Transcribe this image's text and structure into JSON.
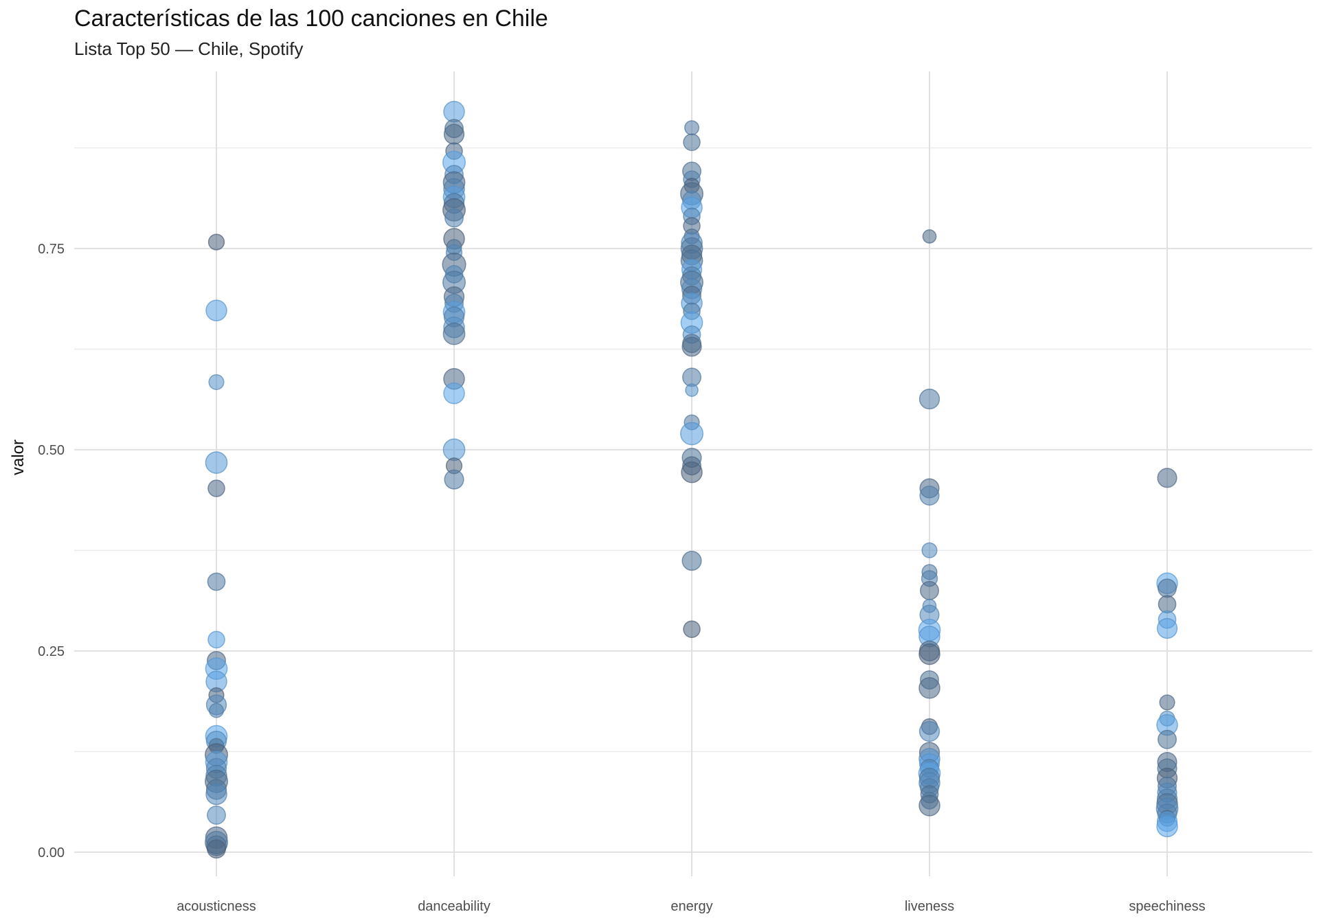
{
  "title": "Características de las 100 canciones en Chile",
  "subtitle": "Lista Top 50 — Chile, Spotify",
  "chart_data": {
    "type": "scatter",
    "title": "Características de las 100 canciones en Chile",
    "subtitle": "Lista Top 50 — Chile, Spotify",
    "xlabel": "",
    "ylabel": "valor",
    "ylim": [
      -0.03,
      0.97
    ],
    "yticks": [
      0,
      0.25,
      0.5,
      0.75
    ],
    "ytick_labels": [
      "0.00",
      "0.25",
      "0.50",
      "0.75"
    ],
    "categories": [
      "acousticness",
      "danceability",
      "energy",
      "liveness",
      "speechiness"
    ],
    "grid": true,
    "legend": "none",
    "colors": {
      "dark": "#4a5a6e",
      "light": "#5aa9f0",
      "mid": "#3f7fc4"
    },
    "points": [
      {
        "cat": "acousticness",
        "y": 0.758,
        "s": 0.45,
        "t": 0.1
      },
      {
        "cat": "acousticness",
        "y": 0.673,
        "s": 0.75,
        "t": 0.9
      },
      {
        "cat": "acousticness",
        "y": 0.584,
        "s": 0.4,
        "t": 0.7
      },
      {
        "cat": "acousticness",
        "y": 0.484,
        "s": 0.8,
        "t": 0.8
      },
      {
        "cat": "acousticness",
        "y": 0.452,
        "s": 0.5,
        "t": 0.2
      },
      {
        "cat": "acousticness",
        "y": 0.336,
        "s": 0.55,
        "t": 0.4
      },
      {
        "cat": "acousticness",
        "y": 0.264,
        "s": 0.5,
        "t": 0.9
      },
      {
        "cat": "acousticness",
        "y": 0.238,
        "s": 0.6,
        "t": 0.2
      },
      {
        "cat": "acousticness",
        "y": 0.228,
        "s": 0.8,
        "t": 0.95
      },
      {
        "cat": "acousticness",
        "y": 0.212,
        "s": 0.75,
        "t": 0.85
      },
      {
        "cat": "acousticness",
        "y": 0.195,
        "s": 0.4,
        "t": 0.1
      },
      {
        "cat": "acousticness",
        "y": 0.183,
        "s": 0.7,
        "t": 0.6
      },
      {
        "cat": "acousticness",
        "y": 0.176,
        "s": 0.35,
        "t": 0.5
      },
      {
        "cat": "acousticness",
        "y": 0.144,
        "s": 0.8,
        "t": 0.95
      },
      {
        "cat": "acousticness",
        "y": 0.138,
        "s": 0.7,
        "t": 0.7
      },
      {
        "cat": "acousticness",
        "y": 0.132,
        "s": 0.4,
        "t": 0.3
      },
      {
        "cat": "acousticness",
        "y": 0.121,
        "s": 0.85,
        "t": 0.1
      },
      {
        "cat": "acousticness",
        "y": 0.112,
        "s": 0.8,
        "t": 0.85
      },
      {
        "cat": "acousticness",
        "y": 0.104,
        "s": 0.7,
        "t": 0.6
      },
      {
        "cat": "acousticness",
        "y": 0.095,
        "s": 0.75,
        "t": 0.5
      },
      {
        "cat": "acousticness",
        "y": 0.088,
        "s": 0.85,
        "t": 0.2
      },
      {
        "cat": "acousticness",
        "y": 0.078,
        "s": 0.7,
        "t": 0.3
      },
      {
        "cat": "acousticness",
        "y": 0.072,
        "s": 0.75,
        "t": 0.6
      },
      {
        "cat": "acousticness",
        "y": 0.046,
        "s": 0.6,
        "t": 0.6
      },
      {
        "cat": "acousticness",
        "y": 0.018,
        "s": 0.8,
        "t": 0.2
      },
      {
        "cat": "acousticness",
        "y": 0.012,
        "s": 0.85,
        "t": 0.4
      },
      {
        "cat": "acousticness",
        "y": 0.008,
        "s": 0.7,
        "t": 0.3
      },
      {
        "cat": "acousticness",
        "y": 0.004,
        "s": 0.6,
        "t": 0.1
      },
      {
        "cat": "danceability",
        "y": 0.92,
        "s": 0.75,
        "t": 0.85
      },
      {
        "cat": "danceability",
        "y": 0.899,
        "s": 0.6,
        "t": 0.3
      },
      {
        "cat": "danceability",
        "y": 0.892,
        "s": 0.7,
        "t": 0.2
      },
      {
        "cat": "danceability",
        "y": 0.871,
        "s": 0.5,
        "t": 0.2
      },
      {
        "cat": "danceability",
        "y": 0.857,
        "s": 0.85,
        "t": 0.95
      },
      {
        "cat": "danceability",
        "y": 0.842,
        "s": 0.6,
        "t": 0.6
      },
      {
        "cat": "danceability",
        "y": 0.832,
        "s": 0.8,
        "t": 0.2
      },
      {
        "cat": "danceability",
        "y": 0.824,
        "s": 0.75,
        "t": 0.5
      },
      {
        "cat": "danceability",
        "y": 0.814,
        "s": 0.8,
        "t": 0.9
      },
      {
        "cat": "danceability",
        "y": 0.806,
        "s": 0.7,
        "t": 0.4
      },
      {
        "cat": "danceability",
        "y": 0.798,
        "s": 0.85,
        "t": 0.1
      },
      {
        "cat": "danceability",
        "y": 0.788,
        "s": 0.6,
        "t": 0.5
      },
      {
        "cat": "danceability",
        "y": 0.762,
        "s": 0.75,
        "t": 0.1
      },
      {
        "cat": "danceability",
        "y": 0.752,
        "s": 0.4,
        "t": 0.3
      },
      {
        "cat": "danceability",
        "y": 0.745,
        "s": 0.45,
        "t": 0.6
      },
      {
        "cat": "danceability",
        "y": 0.73,
        "s": 0.9,
        "t": 0.2
      },
      {
        "cat": "danceability",
        "y": 0.718,
        "s": 0.55,
        "t": 0.6
      },
      {
        "cat": "danceability",
        "y": 0.708,
        "s": 0.85,
        "t": 0.4
      },
      {
        "cat": "danceability",
        "y": 0.69,
        "s": 0.7,
        "t": 0.2
      },
      {
        "cat": "danceability",
        "y": 0.682,
        "s": 0.6,
        "t": 0.5
      },
      {
        "cat": "danceability",
        "y": 0.671,
        "s": 0.8,
        "t": 0.9
      },
      {
        "cat": "danceability",
        "y": 0.665,
        "s": 0.7,
        "t": 0.5
      },
      {
        "cat": "danceability",
        "y": 0.652,
        "s": 0.75,
        "t": 0.7
      },
      {
        "cat": "danceability",
        "y": 0.644,
        "s": 0.8,
        "t": 0.3
      },
      {
        "cat": "danceability",
        "y": 0.588,
        "s": 0.75,
        "t": 0.2
      },
      {
        "cat": "danceability",
        "y": 0.57,
        "s": 0.75,
        "t": 0.95
      },
      {
        "cat": "danceability",
        "y": 0.5,
        "s": 0.8,
        "t": 0.8
      },
      {
        "cat": "danceability",
        "y": 0.48,
        "s": 0.45,
        "t": 0.1
      },
      {
        "cat": "danceability",
        "y": 0.463,
        "s": 0.65,
        "t": 0.4
      },
      {
        "cat": "energy",
        "y": 0.9,
        "s": 0.35,
        "t": 0.4
      },
      {
        "cat": "energy",
        "y": 0.882,
        "s": 0.5,
        "t": 0.3
      },
      {
        "cat": "energy",
        "y": 0.846,
        "s": 0.6,
        "t": 0.3
      },
      {
        "cat": "energy",
        "y": 0.836,
        "s": 0.5,
        "t": 0.5
      },
      {
        "cat": "energy",
        "y": 0.828,
        "s": 0.4,
        "t": 0.1
      },
      {
        "cat": "energy",
        "y": 0.818,
        "s": 0.85,
        "t": 0.2
      },
      {
        "cat": "energy",
        "y": 0.81,
        "s": 0.6,
        "t": 0.6
      },
      {
        "cat": "energy",
        "y": 0.801,
        "s": 0.75,
        "t": 0.95
      },
      {
        "cat": "energy",
        "y": 0.79,
        "s": 0.5,
        "t": 0.5
      },
      {
        "cat": "energy",
        "y": 0.778,
        "s": 0.5,
        "t": 0.2
      },
      {
        "cat": "energy",
        "y": 0.765,
        "s": 0.4,
        "t": 0.3
      },
      {
        "cat": "energy",
        "y": 0.757,
        "s": 0.75,
        "t": 0.6
      },
      {
        "cat": "energy",
        "y": 0.75,
        "s": 0.8,
        "t": 0.4
      },
      {
        "cat": "energy",
        "y": 0.742,
        "s": 0.7,
        "t": 0.2
      },
      {
        "cat": "energy",
        "y": 0.735,
        "s": 0.8,
        "t": 0.3
      },
      {
        "cat": "energy",
        "y": 0.724,
        "s": 0.7,
        "t": 0.9
      },
      {
        "cat": "energy",
        "y": 0.716,
        "s": 0.6,
        "t": 0.5
      },
      {
        "cat": "energy",
        "y": 0.708,
        "s": 0.85,
        "t": 0.3
      },
      {
        "cat": "energy",
        "y": 0.7,
        "s": 0.7,
        "t": 0.6
      },
      {
        "cat": "energy",
        "y": 0.692,
        "s": 0.6,
        "t": 0.2
      },
      {
        "cat": "energy",
        "y": 0.682,
        "s": 0.75,
        "t": 0.85
      },
      {
        "cat": "energy",
        "y": 0.672,
        "s": 0.5,
        "t": 0.4
      },
      {
        "cat": "energy",
        "y": 0.658,
        "s": 0.8,
        "t": 0.95
      },
      {
        "cat": "energy",
        "y": 0.643,
        "s": 0.55,
        "t": 0.7
      },
      {
        "cat": "energy",
        "y": 0.632,
        "s": 0.6,
        "t": 0.3
      },
      {
        "cat": "energy",
        "y": 0.628,
        "s": 0.65,
        "t": 0.2
      },
      {
        "cat": "energy",
        "y": 0.59,
        "s": 0.6,
        "t": 0.4
      },
      {
        "cat": "energy",
        "y": 0.574,
        "s": 0.25,
        "t": 0.7
      },
      {
        "cat": "energy",
        "y": 0.534,
        "s": 0.4,
        "t": 0.4
      },
      {
        "cat": "energy",
        "y": 0.52,
        "s": 0.85,
        "t": 0.85
      },
      {
        "cat": "energy",
        "y": 0.49,
        "s": 0.65,
        "t": 0.3
      },
      {
        "cat": "energy",
        "y": 0.48,
        "s": 0.6,
        "t": 0.2
      },
      {
        "cat": "energy",
        "y": 0.472,
        "s": 0.75,
        "t": 0.1
      },
      {
        "cat": "energy",
        "y": 0.362,
        "s": 0.65,
        "t": 0.3
      },
      {
        "cat": "energy",
        "y": 0.277,
        "s": 0.5,
        "t": 0.1
      },
      {
        "cat": "liveness",
        "y": 0.765,
        "s": 0.3,
        "t": 0.2
      },
      {
        "cat": "liveness",
        "y": 0.563,
        "s": 0.7,
        "t": 0.4
      },
      {
        "cat": "liveness",
        "y": 0.452,
        "s": 0.65,
        "t": 0.2
      },
      {
        "cat": "liveness",
        "y": 0.443,
        "s": 0.65,
        "t": 0.5
      },
      {
        "cat": "liveness",
        "y": 0.375,
        "s": 0.4,
        "t": 0.6
      },
      {
        "cat": "liveness",
        "y": 0.348,
        "s": 0.4,
        "t": 0.4
      },
      {
        "cat": "liveness",
        "y": 0.34,
        "s": 0.45,
        "t": 0.5
      },
      {
        "cat": "liveness",
        "y": 0.325,
        "s": 0.6,
        "t": 0.2
      },
      {
        "cat": "liveness",
        "y": 0.306,
        "s": 0.3,
        "t": 0.6
      },
      {
        "cat": "liveness",
        "y": 0.295,
        "s": 0.65,
        "t": 0.6
      },
      {
        "cat": "liveness",
        "y": 0.276,
        "s": 0.8,
        "t": 0.95
      },
      {
        "cat": "liveness",
        "y": 0.268,
        "s": 0.75,
        "t": 0.85
      },
      {
        "cat": "liveness",
        "y": 0.25,
        "s": 0.7,
        "t": 0.2
      },
      {
        "cat": "liveness",
        "y": 0.246,
        "s": 0.75,
        "t": 0.1
      },
      {
        "cat": "liveness",
        "y": 0.214,
        "s": 0.6,
        "t": 0.3
      },
      {
        "cat": "liveness",
        "y": 0.204,
        "s": 0.75,
        "t": 0.2
      },
      {
        "cat": "liveness",
        "y": 0.156,
        "s": 0.45,
        "t": 0.1
      },
      {
        "cat": "liveness",
        "y": 0.15,
        "s": 0.7,
        "t": 0.6
      },
      {
        "cat": "liveness",
        "y": 0.124,
        "s": 0.7,
        "t": 0.2
      },
      {
        "cat": "liveness",
        "y": 0.116,
        "s": 0.75,
        "t": 0.7
      },
      {
        "cat": "liveness",
        "y": 0.11,
        "s": 0.7,
        "t": 0.9
      },
      {
        "cat": "liveness",
        "y": 0.104,
        "s": 0.6,
        "t": 0.5
      },
      {
        "cat": "liveness",
        "y": 0.098,
        "s": 0.8,
        "t": 0.95
      },
      {
        "cat": "liveness",
        "y": 0.092,
        "s": 0.7,
        "t": 0.4
      },
      {
        "cat": "liveness",
        "y": 0.086,
        "s": 0.75,
        "t": 0.6
      },
      {
        "cat": "liveness",
        "y": 0.08,
        "s": 0.6,
        "t": 0.5
      },
      {
        "cat": "liveness",
        "y": 0.072,
        "s": 0.55,
        "t": 0.3
      },
      {
        "cat": "liveness",
        "y": 0.064,
        "s": 0.5,
        "t": 0.4
      },
      {
        "cat": "liveness",
        "y": 0.058,
        "s": 0.75,
        "t": 0.2
      },
      {
        "cat": "speechiness",
        "y": 0.465,
        "s": 0.65,
        "t": 0.2
      },
      {
        "cat": "speechiness",
        "y": 0.334,
        "s": 0.75,
        "t": 0.95
      },
      {
        "cat": "speechiness",
        "y": 0.328,
        "s": 0.6,
        "t": 0.3
      },
      {
        "cat": "speechiness",
        "y": 0.308,
        "s": 0.55,
        "t": 0.2
      },
      {
        "cat": "speechiness",
        "y": 0.289,
        "s": 0.55,
        "t": 0.85
      },
      {
        "cat": "speechiness",
        "y": 0.278,
        "s": 0.7,
        "t": 0.9
      },
      {
        "cat": "speechiness",
        "y": 0.186,
        "s": 0.4,
        "t": 0.2
      },
      {
        "cat": "speechiness",
        "y": 0.166,
        "s": 0.4,
        "t": 0.7
      },
      {
        "cat": "speechiness",
        "y": 0.158,
        "s": 0.75,
        "t": 0.9
      },
      {
        "cat": "speechiness",
        "y": 0.14,
        "s": 0.6,
        "t": 0.3
      },
      {
        "cat": "speechiness",
        "y": 0.112,
        "s": 0.65,
        "t": 0.2
      },
      {
        "cat": "speechiness",
        "y": 0.104,
        "s": 0.65,
        "t": 0.3
      },
      {
        "cat": "speechiness",
        "y": 0.092,
        "s": 0.7,
        "t": 0.1
      },
      {
        "cat": "speechiness",
        "y": 0.082,
        "s": 0.6,
        "t": 0.4
      },
      {
        "cat": "speechiness",
        "y": 0.074,
        "s": 0.65,
        "t": 0.6
      },
      {
        "cat": "speechiness",
        "y": 0.066,
        "s": 0.7,
        "t": 0.5
      },
      {
        "cat": "speechiness",
        "y": 0.06,
        "s": 0.75,
        "t": 0.3
      },
      {
        "cat": "speechiness",
        "y": 0.054,
        "s": 0.8,
        "t": 0.6
      },
      {
        "cat": "speechiness",
        "y": 0.048,
        "s": 0.65,
        "t": 0.5
      },
      {
        "cat": "speechiness",
        "y": 0.042,
        "s": 0.45,
        "t": 0.1
      },
      {
        "cat": "speechiness",
        "y": 0.038,
        "s": 0.7,
        "t": 0.9
      },
      {
        "cat": "speechiness",
        "y": 0.032,
        "s": 0.75,
        "t": 0.95
      }
    ]
  }
}
